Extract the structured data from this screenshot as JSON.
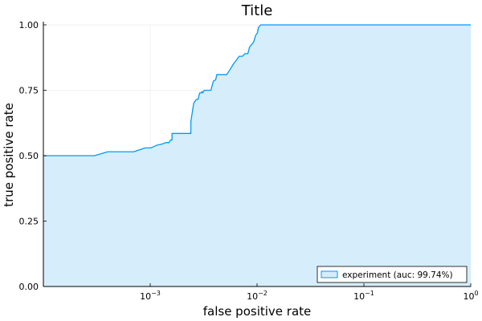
{
  "chart_data": {
    "type": "area",
    "title": "Title",
    "xlabel": "false positive rate",
    "ylabel": "true positive rate",
    "x_scale": "log10",
    "xlim": [
      0.0001,
      1
    ],
    "ylim": [
      0,
      1
    ],
    "grid": true,
    "x_ticks": [
      {
        "value": 0.001,
        "base": "10",
        "exp": "−3"
      },
      {
        "value": 0.01,
        "base": "10",
        "exp": "−2"
      },
      {
        "value": 0.1,
        "base": "10",
        "exp": "−1"
      },
      {
        "value": 1,
        "base": "10",
        "exp": "0"
      }
    ],
    "y_ticks": [
      {
        "value": 0,
        "label": "0.00"
      },
      {
        "value": 0.25,
        "label": "0.25"
      },
      {
        "value": 0.5,
        "label": "0.50"
      },
      {
        "value": 0.75,
        "label": "0.75"
      },
      {
        "value": 1,
        "label": "1.00"
      }
    ],
    "legend": {
      "position": "bottom-right"
    },
    "series": [
      {
        "name": "experiment (auc: 99.74%)",
        "line_color": "#009AFA",
        "fill_color": "#D6EDFB",
        "x": [
          0.0001,
          0.0003,
          0.0004,
          0.0007,
          0.0009,
          0.001,
          0.00102,
          0.00115,
          0.0013,
          0.0014,
          0.0015,
          0.00155,
          0.0016,
          0.0016,
          0.0024,
          0.0024,
          0.00255,
          0.0027,
          0.0028,
          0.0029,
          0.003,
          0.00305,
          0.0031,
          0.0032,
          0.0033,
          0.0037,
          0.0039,
          0.0041,
          0.0042,
          0.0045,
          0.0052,
          0.0055,
          0.006,
          0.0068,
          0.0073,
          0.0077,
          0.0082,
          0.0085,
          0.0087,
          0.0093,
          0.0097,
          0.0101,
          0.0103,
          0.0108,
          0.0114,
          1
        ],
        "y": [
          0.5,
          0.5,
          0.515,
          0.515,
          0.53,
          0.53,
          0.53,
          0.54,
          0.545,
          0.55,
          0.55,
          0.56,
          0.56,
          0.585,
          0.585,
          0.63,
          0.7,
          0.715,
          0.715,
          0.74,
          0.74,
          0.745,
          0.74,
          0.75,
          0.75,
          0.75,
          0.785,
          0.79,
          0.81,
          0.81,
          0.81,
          0.825,
          0.85,
          0.88,
          0.88,
          0.89,
          0.89,
          0.915,
          0.92,
          0.935,
          0.96,
          0.97,
          0.99,
          1.0,
          1.0,
          1.0
        ]
      }
    ]
  }
}
